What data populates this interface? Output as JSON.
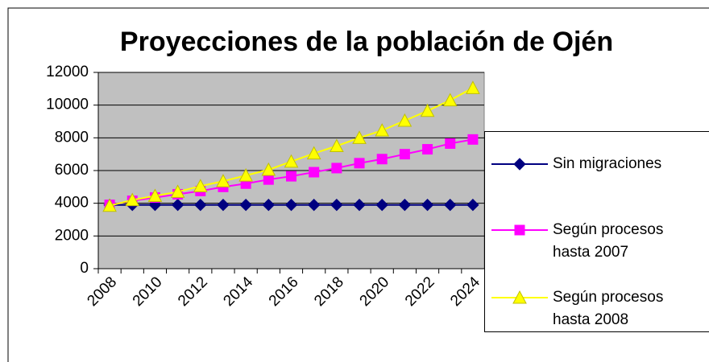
{
  "chart_data": {
    "type": "line",
    "title": "Proyecciones de la población de Ojén",
    "categories": [
      "2008",
      null,
      "2010",
      null,
      "2012",
      null,
      "2014",
      null,
      "2016",
      null,
      "2018",
      null,
      "2020",
      null,
      "2022",
      null,
      "2024"
    ],
    "series": [
      {
        "name": "Sin migraciones",
        "color": "#000080",
        "marker": "diamond",
        "values": [
          3900,
          3900,
          3900,
          3900,
          3900,
          3900,
          3900,
          3900,
          3900,
          3900,
          3900,
          3900,
          3900,
          3900,
          3900,
          3900,
          3900
        ]
      },
      {
        "name": "Según procesos hasta 2007",
        "color": "#ff00ff",
        "marker": "square",
        "values": [
          3900,
          4150,
          4350,
          4550,
          4750,
          5000,
          5200,
          5450,
          5650,
          5900,
          6150,
          6450,
          6700,
          7000,
          7300,
          7650,
          7900
        ]
      },
      {
        "name": "Según procesos hasta 2008",
        "color": "#ffff00",
        "marker": "triangle",
        "values": [
          3850,
          4200,
          4450,
          4700,
          5050,
          5350,
          5700,
          6050,
          6550,
          7050,
          7500,
          8000,
          8450,
          9050,
          9650,
          10300,
          11050
        ]
      }
    ],
    "ylim": [
      0,
      12000
    ],
    "yticks": [
      0,
      2000,
      4000,
      6000,
      8000,
      10000,
      12000
    ],
    "grid": true,
    "legend": "right"
  }
}
